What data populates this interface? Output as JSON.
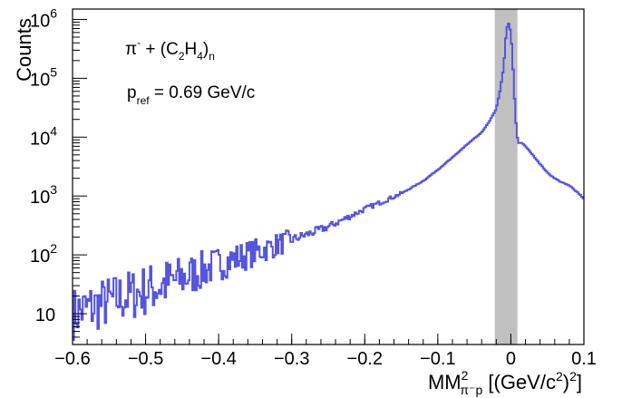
{
  "chart_data": {
    "type": "line",
    "style": "step-histogram",
    "ylabel": "Counts",
    "xlabel": {
      "main": "MM",
      "superscript": "2",
      "subscript": "π⁻p",
      "units_open": " [(GeV/c",
      "units_sup1": "2",
      "units_mid": ")",
      "units_sup2": "2",
      "units_close": "]"
    },
    "xlim": [
      -0.6,
      0.1
    ],
    "ylim": [
      3,
      1500000
    ],
    "yscale": "log",
    "grid": false,
    "x_ticks": [
      "-0.6",
      "-0.5",
      "-0.4",
      "-0.3",
      "-0.2",
      "-0.1",
      "0",
      "0.1"
    ],
    "y_ticks": [
      {
        "base": "10",
        "exp": ""
      },
      {
        "base": "10",
        "exp": "2"
      },
      {
        "base": "10",
        "exp": "3"
      },
      {
        "base": "10",
        "exp": "4"
      },
      {
        "base": "10",
        "exp": "5"
      },
      {
        "base": "10",
        "exp": "6"
      }
    ],
    "annotations": {
      "reaction": {
        "pi": "π",
        "pi_sup": "-",
        "plus": " + (C",
        "c_sub": "2",
        "h": "H",
        "h_sub": "4",
        "close": ")",
        "n_sub": "n"
      },
      "momentum": {
        "p": "p",
        "sub": "ref",
        "value": " = 0.69 GeV/c"
      }
    },
    "shaded_band": {
      "x_from": -0.022,
      "x_to": 0.009,
      "color": "#c0c0c0"
    },
    "series": [
      {
        "color": "#5555dd",
        "x": [
          -0.6,
          -0.55,
          -0.5,
          -0.45,
          -0.4,
          -0.35,
          -0.3,
          -0.25,
          -0.2,
          -0.15,
          -0.12,
          -0.1,
          -0.08,
          -0.06,
          -0.04,
          -0.03,
          -0.02,
          -0.015,
          -0.01,
          -0.006,
          -0.003,
          0,
          0.002,
          0.004,
          0.006,
          0.008,
          0.01,
          0.015,
          0.02,
          0.03,
          0.04,
          0.05,
          0.06,
          0.07,
          0.08,
          0.09,
          0.1
        ],
        "values": [
          10,
          16,
          25,
          40,
          70,
          110,
          180,
          300,
          600,
          1100,
          1800,
          2800,
          4500,
          7500,
          12000,
          18000,
          30000,
          60000,
          150000,
          700000,
          850000,
          600000,
          250000,
          80000,
          25000,
          12000,
          8000,
          8000,
          7000,
          5000,
          3500,
          2500,
          2000,
          1700,
          1500,
          1200,
          900
        ]
      }
    ]
  }
}
